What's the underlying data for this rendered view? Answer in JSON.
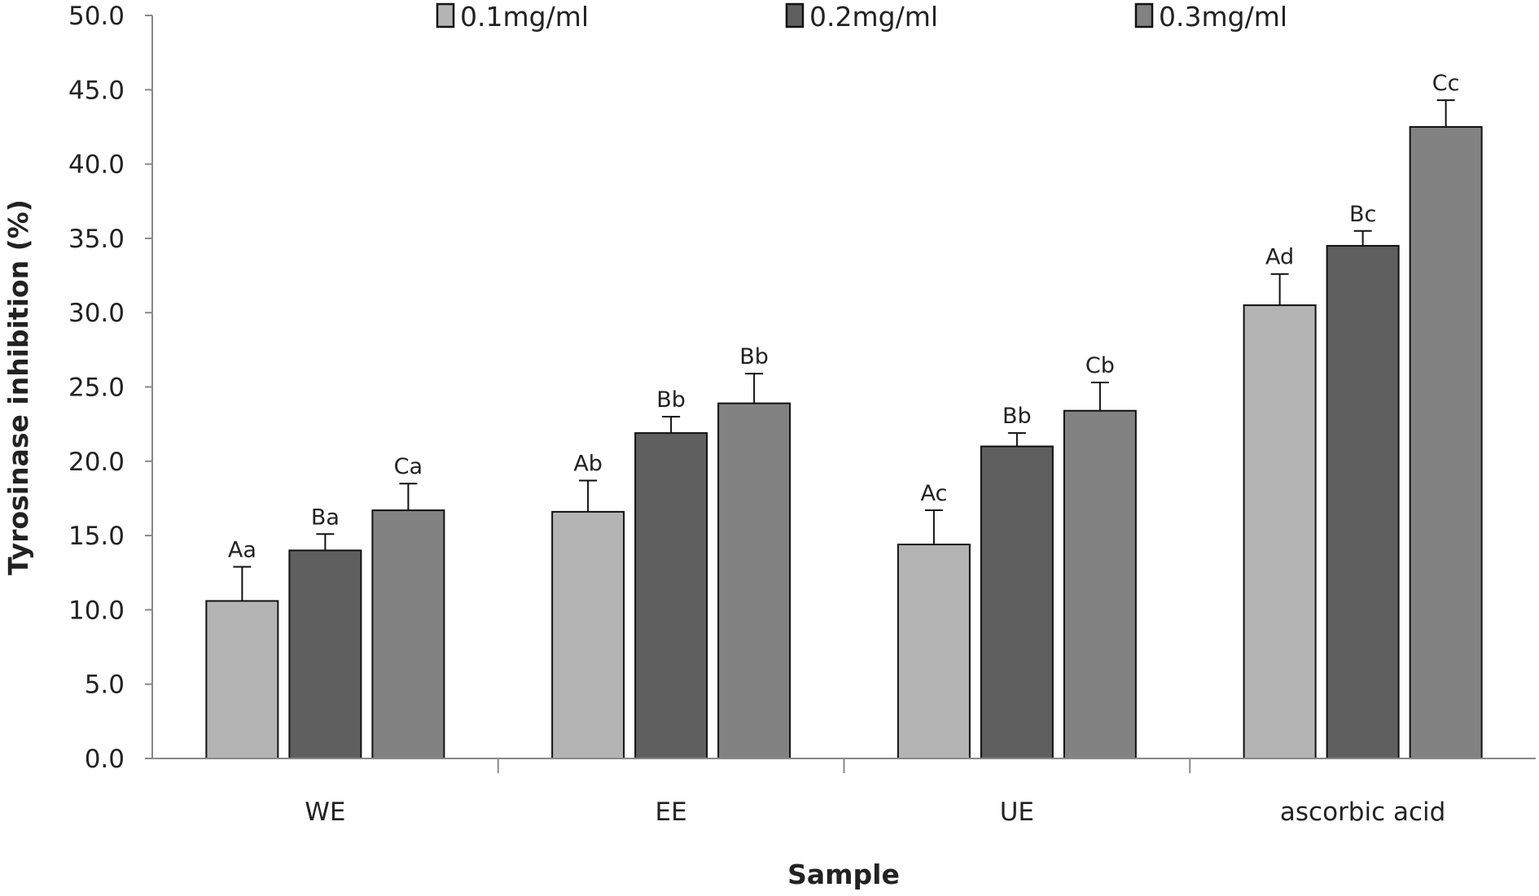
{
  "chart_data": {
    "type": "bar",
    "title": "",
    "xlabel": "Sample",
    "ylabel": "Tyrosinase inhibition (%)",
    "ylim": [
      0,
      50
    ],
    "yticks": [
      "0.0",
      "5.0",
      "10.0",
      "15.0",
      "20.0",
      "25.0",
      "30.0",
      "35.0",
      "40.0",
      "45.0",
      "50.0"
    ],
    "categories": [
      "WE",
      "EE",
      "UE",
      "ascorbic acid"
    ],
    "legend_position": "top",
    "series": [
      {
        "name": "0.1mg/ml",
        "color": "#b4b4b4",
        "values": [
          10.6,
          16.6,
          14.4,
          30.5
        ],
        "errors": [
          2.3,
          2.1,
          2.3,
          2.1
        ],
        "labels": [
          "Aa",
          "Ab",
          "Ac",
          "Ad"
        ]
      },
      {
        "name": "0.2mg/ml",
        "color": "#5f5f5f",
        "values": [
          14.0,
          21.9,
          21.0,
          34.5
        ],
        "errors": [
          1.1,
          1.1,
          0.9,
          1.0
        ],
        "labels": [
          "Ba",
          "Bb",
          "Bb",
          "Bc"
        ]
      },
      {
        "name": "0.3mg/ml",
        "color": "#828282",
        "values": [
          16.7,
          23.9,
          23.4,
          42.5
        ],
        "errors": [
          1.8,
          2.0,
          1.9,
          1.8
        ],
        "labels": [
          "Ca",
          "Bb",
          "Cb",
          "Cc"
        ]
      }
    ]
  }
}
